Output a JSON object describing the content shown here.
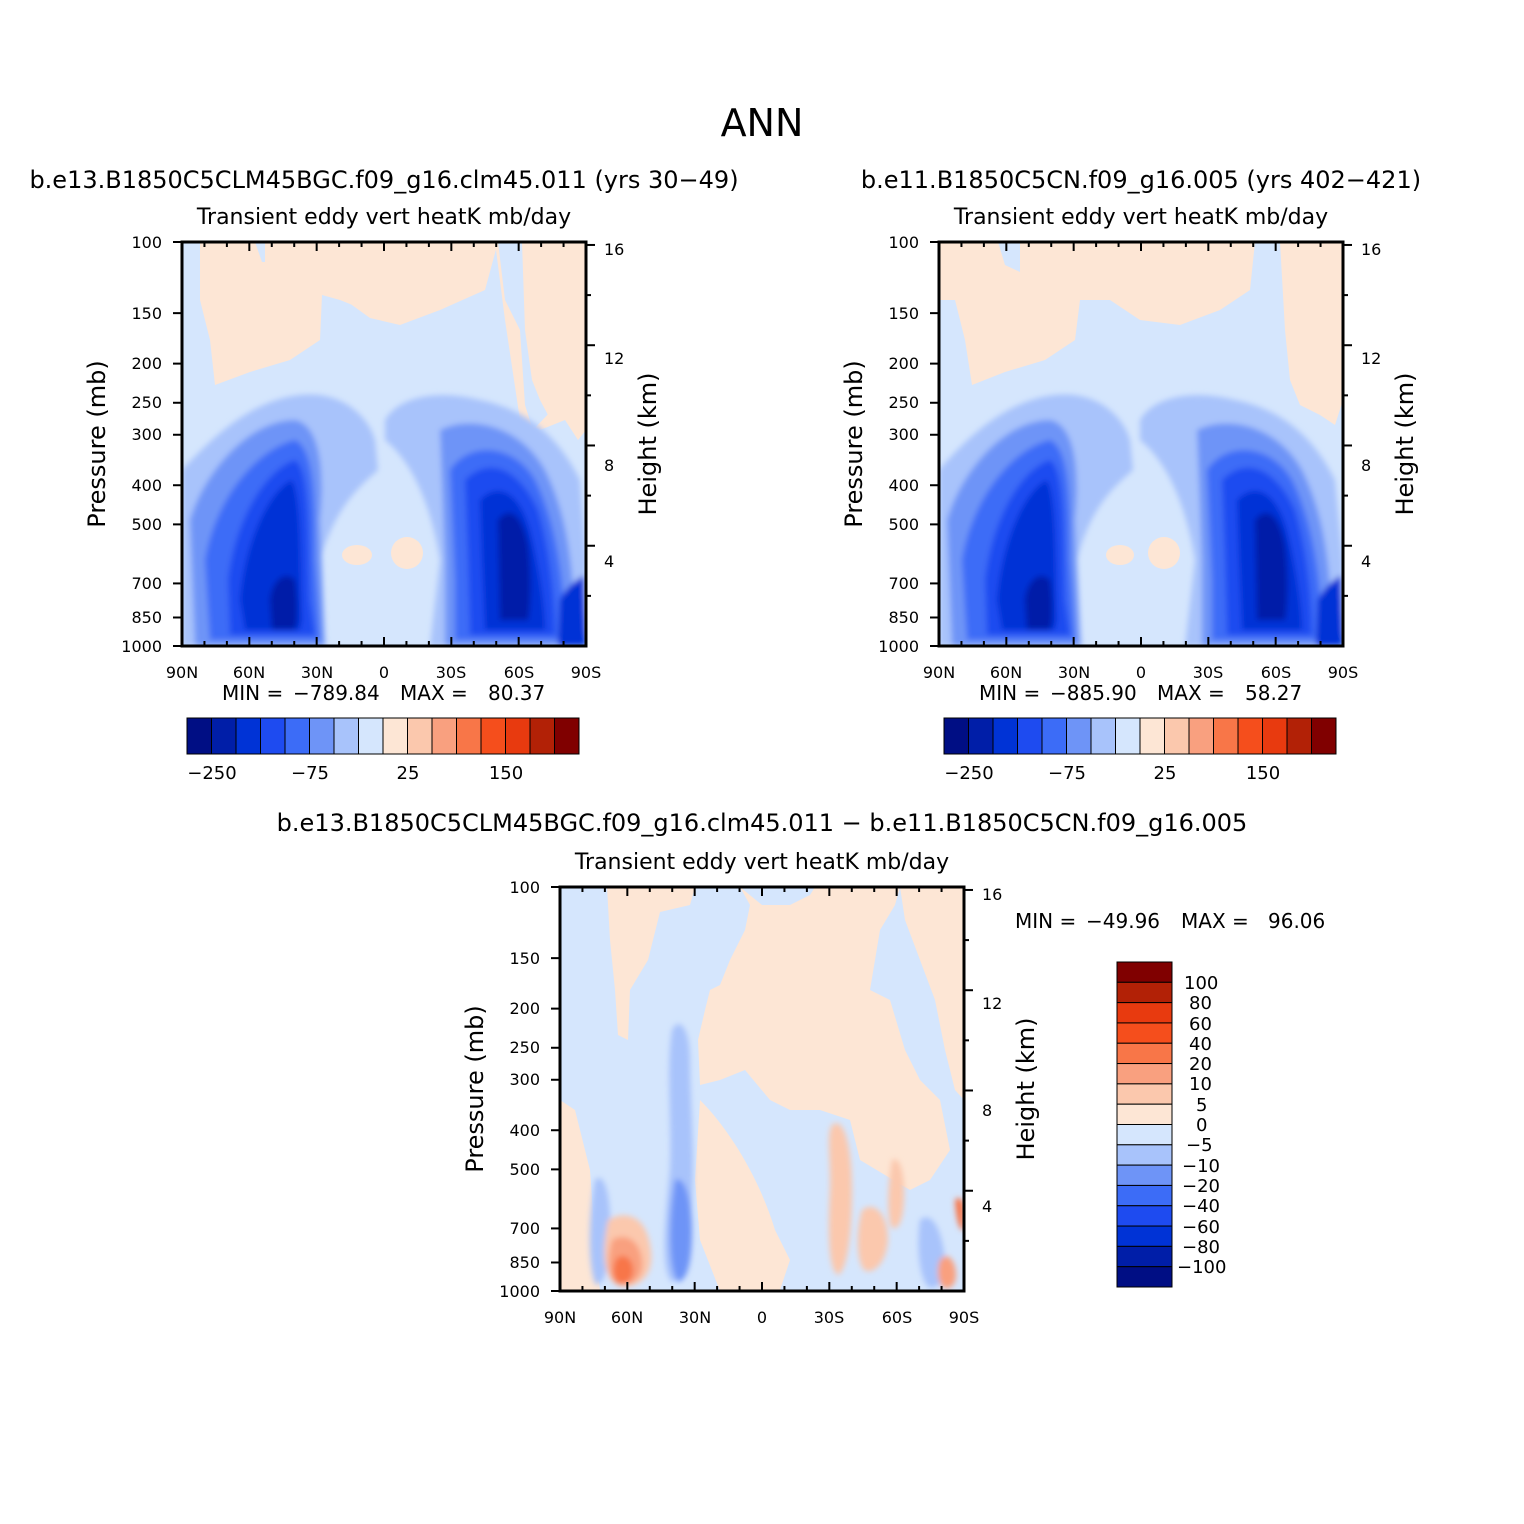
{
  "page": {
    "title": "ANN"
  },
  "colors": {
    "fill_palette": [
      "#000e84",
      "#001ea8",
      "#0033d6",
      "#1e4bf0",
      "#3c6cf7",
      "#6e94f7",
      "#a8c3fb",
      "#d5e6fd",
      "#fde6d5",
      "#fbc8ad",
      "#f9a07f",
      "#f87648",
      "#f54e1c",
      "#e83a0f",
      "#b22106",
      "#800000"
    ]
  },
  "chart_data": [
    {
      "type": "heatmap",
      "name": "panel-case",
      "title": "b.e13.B1850C5CLM45BGC.f09_g16.clm45.011 (yrs 30-49)",
      "subtitle": "Transient eddy vert heatK mb/day",
      "ylabel": "Pressure (mb)",
      "ylabel_right": "Height (km)",
      "x_ticks": [
        "90N",
        "60N",
        "30N",
        "0",
        "30S",
        "60S",
        "90S"
      ],
      "y_ticks": [
        100,
        150,
        200,
        250,
        300,
        400,
        500,
        700,
        850,
        1000
      ],
      "y_right_ticks": [
        16,
        12,
        8,
        4
      ],
      "ylim": [
        1000,
        100
      ],
      "stats": {
        "min_label": "MIN =",
        "min": "-789.84",
        "max_label": "MAX =",
        "max": "80.37"
      },
      "colorbar": {
        "orientation": "horizontal",
        "labels": [
          "-250",
          "-75",
          "25",
          "150"
        ]
      }
    },
    {
      "type": "heatmap",
      "name": "panel-control",
      "title": "b.e11.B1850C5CN.f09_g16.005 (yrs 402-421)",
      "subtitle": "Transient eddy vert heatK mb/day",
      "ylabel": "Pressure (mb)",
      "ylabel_right": "Height (km)",
      "x_ticks": [
        "90N",
        "60N",
        "30N",
        "0",
        "30S",
        "60S",
        "90S"
      ],
      "y_ticks": [
        100,
        150,
        200,
        250,
        300,
        400,
        500,
        700,
        850,
        1000
      ],
      "y_right_ticks": [
        16,
        12,
        8,
        4
      ],
      "ylim": [
        1000,
        100
      ],
      "stats": {
        "min_label": "MIN =",
        "min": "-885.90",
        "max_label": "MAX =",
        "max": "58.27"
      },
      "colorbar": {
        "orientation": "horizontal",
        "labels": [
          "-250",
          "-75",
          "25",
          "150"
        ]
      }
    },
    {
      "type": "heatmap",
      "name": "panel-diff",
      "title": "b.e13.B1850C5CLM45BGC.f09_g16.clm45.011 - b.e11.B1850C5CN.f09_g16.005",
      "subtitle": "Transient eddy vert heatK mb/day",
      "ylabel": "Pressure (mb)",
      "ylabel_right": "Height (km)",
      "x_ticks": [
        "90N",
        "60N",
        "30N",
        "0",
        "30S",
        "60S",
        "90S"
      ],
      "y_ticks": [
        100,
        150,
        200,
        250,
        300,
        400,
        500,
        700,
        850,
        1000
      ],
      "y_right_ticks": [
        16,
        12,
        8,
        4
      ],
      "ylim": [
        1000,
        100
      ],
      "stats": {
        "min_label": "MIN =",
        "min": "-49.96",
        "max_label": "MAX =",
        "max": "96.06"
      },
      "colorbar": {
        "orientation": "vertical",
        "labels": [
          "100",
          "80",
          "60",
          "40",
          "20",
          "10",
          "5",
          "0",
          "-5",
          "-10",
          "-20",
          "-40",
          "-60",
          "-80",
          "-100"
        ]
      }
    }
  ]
}
